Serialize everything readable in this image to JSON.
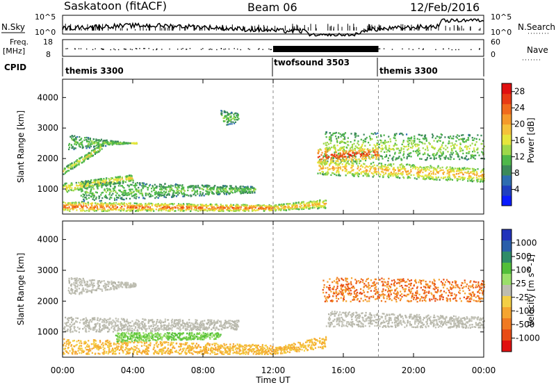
{
  "header": {
    "station": "Saskatoon (fitACF)",
    "beam": "Beam 06",
    "date": "12/Feb/2016"
  },
  "status_panels": {
    "nsky_label": "N.Sky",
    "nsky_ticks": [
      "10^5",
      "10^0"
    ],
    "nsearch_label": "N.Search",
    "nsearch_ticks": [
      "10^5",
      "10^0"
    ],
    "freq_label": "Freq.",
    "freq_unit": "[MHz]",
    "freq_ticks": [
      "18",
      "8"
    ],
    "nave_label": "Nave",
    "nave_ticks": [
      "60",
      "0"
    ],
    "cpid_label": "CPID",
    "cpid_segments": [
      {
        "name": "themis 3300",
        "start_ut": 0,
        "end_ut": 12
      },
      {
        "name": "twofsound 3503",
        "start_ut": 12,
        "end_ut": 18
      },
      {
        "name": "themis 3300",
        "start_ut": 18,
        "end_ut": 24
      }
    ]
  },
  "chart_data": [
    {
      "type": "heatmap",
      "title": "Power",
      "ylabel": "Slant Range [km]",
      "xlabel": "Time UT",
      "xlim": [
        "00:00",
        "24:00"
      ],
      "ylim": [
        180,
        4600
      ],
      "x_ticks": [
        "00:00",
        "04:00",
        "08:00",
        "12:00",
        "16:00",
        "20:00",
        "00:00"
      ],
      "y_ticks": [
        1000,
        2000,
        3000,
        4000
      ],
      "colorbar": {
        "label": "Power [dB]",
        "ticks": [
          4,
          8,
          12,
          16,
          20,
          24,
          28
        ],
        "range": [
          0,
          30
        ],
        "colors": [
          "#0a1bff",
          "#1f3fbf",
          "#2e6db0",
          "#3c8a5a",
          "#4fb84a",
          "#9ed84a",
          "#e6e63c",
          "#f5c23a",
          "#f59a2a",
          "#f06a1c",
          "#e83a14",
          "#e01010"
        ]
      },
      "bands": [
        {
          "t0": 0.3,
          "t1": 4.2,
          "r_start0": 2300,
          "r_start1": 2550,
          "r_end0": 2800,
          "r_end1": 2500,
          "level": 8
        },
        {
          "t0": 0.0,
          "t1": 2.2,
          "r_start0": 1500,
          "r_start1": 2300,
          "r_end0": 1700,
          "r_end1": 2500,
          "level": 12
        },
        {
          "t0": 0.0,
          "t1": 4.0,
          "r_start0": 900,
          "r_start1": 1300,
          "r_end0": 1200,
          "r_end1": 1500,
          "level": 14
        },
        {
          "t0": 1.0,
          "t1": 11.0,
          "r_start0": 600,
          "r_start1": 900,
          "r_end0": 1300,
          "r_end1": 1100,
          "level": 8
        },
        {
          "t0": 0.0,
          "t1": 12.0,
          "r_start0": 300,
          "r_start1": 300,
          "r_end0": 600,
          "r_end1": 500,
          "level": 20
        },
        {
          "t0": 9.0,
          "t1": 10.0,
          "r_start0": 3100,
          "r_start1": 3200,
          "r_end0": 3600,
          "r_end1": 3500,
          "level": 8
        },
        {
          "t0": 12.0,
          "t1": 15.0,
          "r_start0": 300,
          "r_start1": 400,
          "r_end0": 500,
          "r_end1": 700,
          "level": 16
        },
        {
          "t0": 14.5,
          "t1": 24.0,
          "r_start0": 1500,
          "r_start1": 1250,
          "r_end0": 2000,
          "r_end1": 1700,
          "level": 16
        },
        {
          "t0": 14.8,
          "t1": 24.0,
          "r_start0": 1900,
          "r_start1": 2000,
          "r_end0": 2900,
          "r_end1": 2800,
          "level": 10
        },
        {
          "t0": 14.5,
          "t1": 18.0,
          "r_start0": 1800,
          "r_start1": 2000,
          "r_end0": 2400,
          "r_end1": 2400,
          "level": 22
        }
      ]
    },
    {
      "type": "heatmap",
      "title": "Velocity",
      "ylabel": "Slant Range [km]",
      "xlabel": "Time UT",
      "xlim": [
        "00:00",
        "24:00"
      ],
      "ylim": [
        180,
        4600
      ],
      "x_ticks": [
        "00:00",
        "04:00",
        "08:00",
        "12:00",
        "16:00",
        "20:00",
        "00:00"
      ],
      "y_ticks": [
        1000,
        2000,
        3000,
        4000
      ],
      "colorbar": {
        "label": "Velocity [m s^-1]",
        "ticks": [
          "1000",
          "500",
          "100",
          "25",
          "-25",
          "-100",
          "-500",
          "-1000"
        ],
        "colors": [
          "#2233bb",
          "#2a5faa",
          "#2e8c68",
          "#52bf3a",
          "#9adf6a",
          "#bdbdb0",
          "#f3cf45",
          "#f5a530",
          "#f07a22",
          "#e84c16",
          "#e01010"
        ]
      },
      "bands": [
        {
          "t0": 0.3,
          "t1": 4.2,
          "r_start0": 2200,
          "r_start1": 2500,
          "r_end0": 2800,
          "r_end1": 2600,
          "vel": "ground"
        },
        {
          "t0": 0.0,
          "t1": 10.0,
          "r_start0": 1000,
          "r_start1": 1100,
          "r_end0": 1500,
          "r_end1": 1400,
          "vel": "ground"
        },
        {
          "t0": 0.0,
          "t1": 12.0,
          "r_start0": 300,
          "r_start1": 300,
          "r_end0": 800,
          "r_end1": 600,
          "vel": "-100"
        },
        {
          "t0": 3.0,
          "t1": 9.0,
          "r_start0": 700,
          "r_start1": 800,
          "r_end0": 1000,
          "r_end1": 1000,
          "vel": "100"
        },
        {
          "t0": 12.0,
          "t1": 15.0,
          "r_start0": 300,
          "r_start1": 500,
          "r_end0": 500,
          "r_end1": 900,
          "vel": "-100"
        },
        {
          "t0": 15.0,
          "t1": 24.0,
          "r_start0": 1200,
          "r_start1": 1150,
          "r_end0": 1700,
          "r_end1": 1500,
          "vel": "ground"
        },
        {
          "t0": 14.8,
          "t1": 24.0,
          "r_start0": 2000,
          "r_start1": 2000,
          "r_end0": 2800,
          "r_end1": 2700,
          "vel": "-500"
        }
      ]
    }
  ]
}
